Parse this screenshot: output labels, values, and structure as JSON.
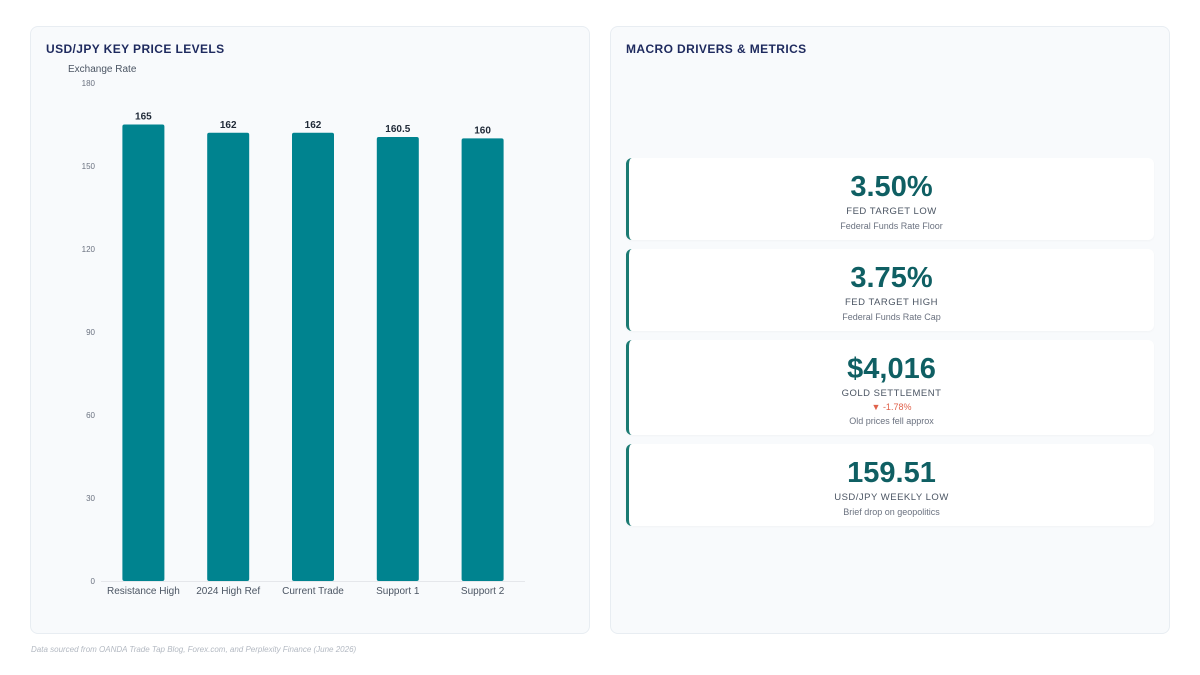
{
  "left_panel": {
    "title": "USD/JPY KEY PRICE LEVELS"
  },
  "right_panel": {
    "title": "MACRO DRIVERS & METRICS"
  },
  "chart_data": {
    "type": "bar",
    "ylabel": "Exchange Rate",
    "categories": [
      "Resistance High",
      "2024 High Ref",
      "Current Trade",
      "Support 1",
      "Support 2"
    ],
    "values": [
      165,
      162,
      162,
      160.5,
      160
    ],
    "value_labels": [
      "165",
      "162",
      "162",
      "160.5",
      "160"
    ],
    "ylim": [
      0,
      180
    ],
    "yticks": [
      0,
      30,
      60,
      90,
      120,
      150,
      180
    ],
    "bar_color": "#00838f",
    "grid": false,
    "legend": "none"
  },
  "metrics": [
    {
      "value": "3.50%",
      "label": "FED TARGET LOW",
      "sub": "Federal Funds Rate Floor"
    },
    {
      "value": "3.75%",
      "label": "FED TARGET HIGH",
      "sub": "Federal Funds Rate Cap"
    },
    {
      "value": "$4,016",
      "label": "GOLD SETTLEMENT",
      "delta": "▼ -1.78%",
      "sub": "Old prices fell approx"
    },
    {
      "value": "159.51",
      "label": "USD/JPY WEEKLY LOW",
      "sub": "Brief drop on geopolitics"
    }
  ],
  "colors": {
    "accent": "#1a7a72",
    "value_text": "#0f5f63",
    "negative": "#e0624b",
    "title": "#1e2a5e"
  },
  "footer": {
    "source": "Data sourced from OANDA Trade Tap Blog, Forex.com, and Perplexity Finance (June 2026)"
  }
}
